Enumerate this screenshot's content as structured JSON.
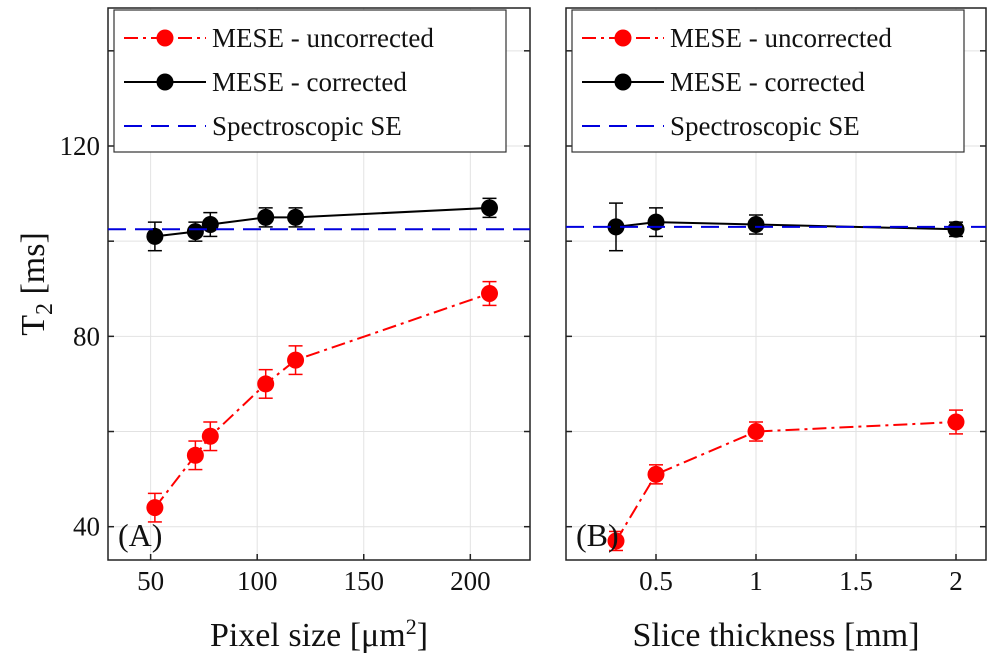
{
  "y_axis": {
    "label_base": "T",
    "label_sub": "2",
    "label_unit": " [ms]",
    "ticks": [
      40,
      80,
      120
    ],
    "ylim": [
      33,
      149
    ]
  },
  "legend": {
    "items": [
      {
        "label": "MESE - uncorrected",
        "color": "#ff0000",
        "style": "dashdot",
        "marker": true
      },
      {
        "label": "MESE - corrected",
        "color": "#000000",
        "style": "solid",
        "marker": true
      },
      {
        "label": "Spectroscopic SE",
        "color": "#0000dd",
        "style": "dashed",
        "marker": false
      }
    ]
  },
  "chart_data": [
    {
      "type": "line",
      "panel_label": "(A)",
      "xlabel": "Pixel size [μm",
      "xlabel_sup": "2",
      "xlabel_end": "]",
      "xlim": [
        30,
        228
      ],
      "xticks": [
        50,
        100,
        150,
        200
      ],
      "xtick_labels": [
        "50",
        "100",
        "150",
        "200"
      ],
      "grid": true,
      "legend_position": "top",
      "series": [
        {
          "name": "MESE - uncorrected",
          "color": "#ff0000",
          "x": [
            52,
            71,
            78,
            104,
            118,
            209
          ],
          "y": [
            44,
            55,
            59,
            70,
            75,
            89
          ],
          "err": [
            3,
            3,
            3,
            3,
            3,
            2.5
          ]
        },
        {
          "name": "MESE - corrected",
          "color": "#000000",
          "x": [
            52,
            71,
            78,
            104,
            118,
            209
          ],
          "y": [
            101,
            102,
            103.5,
            105,
            105,
            107
          ],
          "err": [
            3,
            2,
            2.5,
            2,
            2,
            2
          ]
        },
        {
          "name": "Spectroscopic SE",
          "color": "#0000dd",
          "hline": 102.5
        }
      ]
    },
    {
      "type": "line",
      "panel_label": "(B)",
      "xlabel": "Slice thickness [mm]",
      "xlim": [
        0.05,
        2.15
      ],
      "xticks": [
        0.5,
        1,
        1.5,
        2
      ],
      "xtick_labels": [
        "0.5",
        "1",
        "1.5",
        "2"
      ],
      "grid": true,
      "legend_position": "top",
      "series": [
        {
          "name": "MESE - uncorrected",
          "color": "#ff0000",
          "x": [
            0.3,
            0.5,
            1,
            2
          ],
          "y": [
            37,
            51,
            60,
            62
          ],
          "err": [
            2,
            2,
            2,
            2.5
          ]
        },
        {
          "name": "MESE - corrected",
          "color": "#000000",
          "x": [
            0.3,
            0.5,
            1,
            2
          ],
          "y": [
            103,
            104,
            103.5,
            102.5
          ],
          "err": [
            5,
            3,
            2,
            1.5
          ]
        },
        {
          "name": "Spectroscopic SE",
          "color": "#0000dd",
          "hline": 103
        }
      ]
    }
  ]
}
